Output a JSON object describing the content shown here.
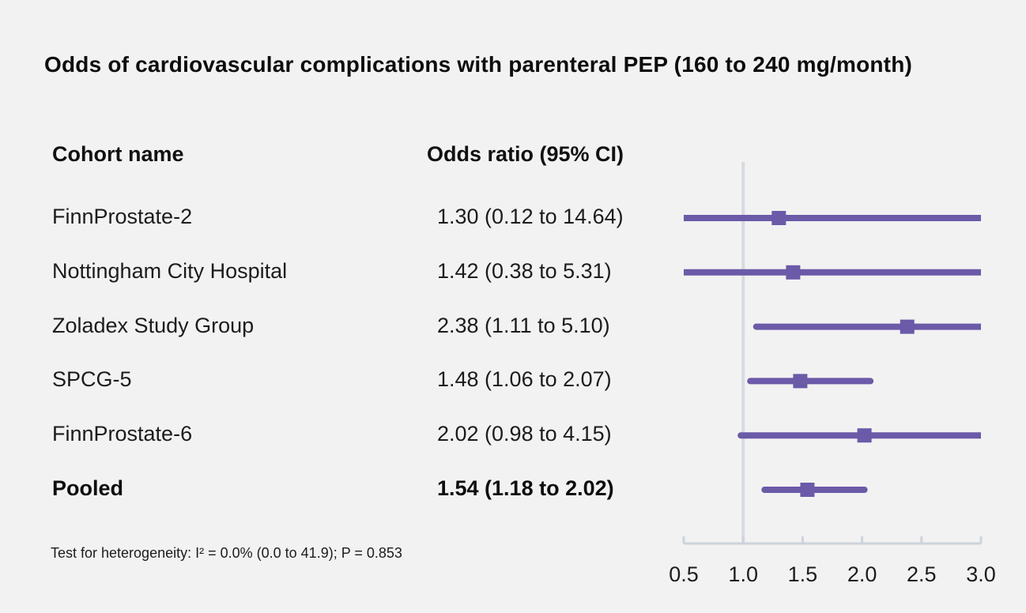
{
  "chart_data": {
    "type": "forest",
    "title": "Odds of cardiovascular complications with parenteral PEP (160 to 240 mg/month)",
    "columns": {
      "cohort": "Cohort name",
      "odds": "Odds ratio (95% CI)"
    },
    "rows": [
      {
        "name": "FinnProstate-2",
        "value_label": "1.30 (0.12 to 14.64)",
        "or": 1.3,
        "ci_low": 0.12,
        "ci_high": 14.64,
        "pooled": false
      },
      {
        "name": "Nottingham City Hospital",
        "value_label": "1.42 (0.38 to 5.31)",
        "or": 1.42,
        "ci_low": 0.38,
        "ci_high": 5.31,
        "pooled": false
      },
      {
        "name": "Zoladex Study Group",
        "value_label": "2.38 (1.11 to 5.10)",
        "or": 2.38,
        "ci_low": 1.11,
        "ci_high": 5.1,
        "pooled": false
      },
      {
        "name": "SPCG-5",
        "value_label": "1.48 (1.06 to 2.07)",
        "or": 1.48,
        "ci_low": 1.06,
        "ci_high": 2.07,
        "pooled": false
      },
      {
        "name": "FinnProstate-6",
        "value_label": "2.02 (0.98 to 4.15)",
        "or": 2.02,
        "ci_low": 0.98,
        "ci_high": 4.15,
        "pooled": false
      },
      {
        "name": "Pooled",
        "value_label": "1.54 (1.18 to 2.02)",
        "or": 1.54,
        "ci_low": 1.18,
        "ci_high": 2.02,
        "pooled": true
      }
    ],
    "x_axis": {
      "min": 0.5,
      "max": 3.0,
      "ticks": [
        0.5,
        1.0,
        1.5,
        2.0,
        2.5,
        3.0
      ],
      "tick_labels": [
        "0.5",
        "1.0",
        "1.5",
        "2.0",
        "2.5",
        "3.0"
      ],
      "reference_line": 1.0,
      "scale": "linear",
      "grid": false
    },
    "footnote": "Test for heterogeneity: I² = 0.0% (0.0 to 41.9); P = 0.853",
    "colors": {
      "marker": "#6b5aa8",
      "ci_line": "#6b5aa8",
      "axis": "#ccd3da",
      "reference_line": "#d6dae1",
      "background": "#f2f2f2",
      "text": "#1c1c1c"
    }
  }
}
